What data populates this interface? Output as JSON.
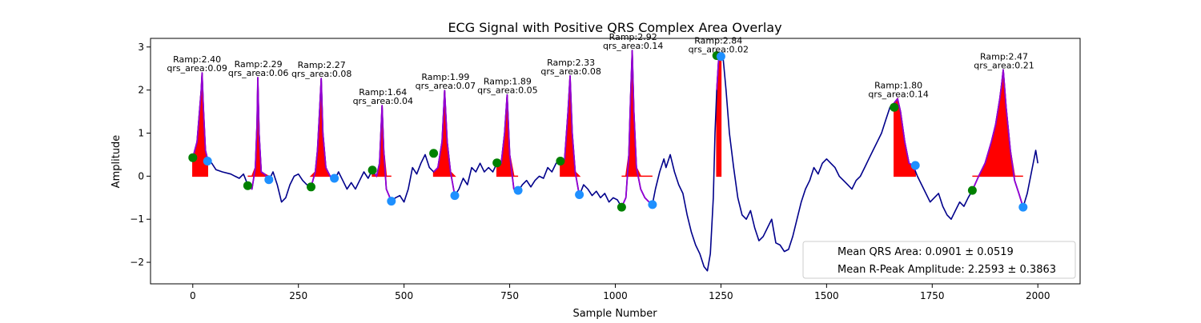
{
  "chart_data": {
    "type": "line",
    "title": "ECG Signal with Positive QRS Complex Area Overlay",
    "xlabel": "Sample Number",
    "ylabel": "Amplitude",
    "xlim": [
      -100,
      2100
    ],
    "ylim": [
      -2.5,
      3.2
    ],
    "xticks": [
      0,
      250,
      500,
      750,
      1000,
      1250,
      1500,
      1750,
      2000
    ],
    "yticks": [
      -2,
      -1,
      0,
      1,
      2,
      3
    ],
    "colors": {
      "signal": "#00008B",
      "qrs_segment": "#9400D3",
      "qrs_fill": "#FF0000",
      "onset_marker": "#008000",
      "offset_marker": "#1E90FF"
    },
    "legend": {
      "placement": "lower-right",
      "entries": [
        "Mean QRS Area: 0.0901 ± 0.0519",
        "Mean R-Peak Amplitude: 2.2593 ± 0.3863"
      ]
    },
    "signal": [
      [
        0,
        0.43
      ],
      [
        10,
        0.8
      ],
      [
        15,
        1.4
      ],
      [
        20,
        2.0
      ],
      [
        22,
        2.4
      ],
      [
        25,
        1.6
      ],
      [
        30,
        0.6
      ],
      [
        35,
        0.4
      ],
      [
        45,
        0.3
      ],
      [
        55,
        0.15
      ],
      [
        70,
        0.1
      ],
      [
        90,
        0.05
      ],
      [
        100,
        0.0
      ],
      [
        110,
        -0.05
      ],
      [
        120,
        0.05
      ],
      [
        130,
        -0.2
      ],
      [
        140,
        -0.3
      ],
      [
        148,
        0.2
      ],
      [
        152,
        1.2
      ],
      [
        154,
        2.29
      ],
      [
        157,
        1.0
      ],
      [
        162,
        0.1
      ],
      [
        170,
        0.05
      ],
      [
        180,
        -0.1
      ],
      [
        190,
        0.1
      ],
      [
        200,
        -0.2
      ],
      [
        210,
        -0.6
      ],
      [
        220,
        -0.5
      ],
      [
        230,
        -0.2
      ],
      [
        240,
        0.0
      ],
      [
        250,
        0.05
      ],
      [
        260,
        -0.1
      ],
      [
        270,
        -0.2
      ],
      [
        280,
        -0.25
      ],
      [
        290,
        0.1
      ],
      [
        295,
        0.6
      ],
      [
        300,
        1.5
      ],
      [
        304,
        2.27
      ],
      [
        308,
        1.0
      ],
      [
        315,
        0.2
      ],
      [
        325,
        0.0
      ],
      [
        335,
        -0.1
      ],
      [
        345,
        0.1
      ],
      [
        355,
        -0.1
      ],
      [
        365,
        -0.3
      ],
      [
        375,
        -0.15
      ],
      [
        385,
        -0.3
      ],
      [
        395,
        -0.1
      ],
      [
        405,
        0.1
      ],
      [
        415,
        -0.05
      ],
      [
        425,
        0.15
      ],
      [
        435,
        0.0
      ],
      [
        442,
        0.3
      ],
      [
        448,
        1.64
      ],
      [
        452,
        0.6
      ],
      [
        458,
        -0.3
      ],
      [
        470,
        -0.58
      ],
      [
        480,
        -0.5
      ],
      [
        490,
        -0.45
      ],
      [
        500,
        -0.6
      ],
      [
        510,
        -0.3
      ],
      [
        520,
        0.2
      ],
      [
        530,
        0.05
      ],
      [
        540,
        0.3
      ],
      [
        550,
        0.5
      ],
      [
        560,
        0.2
      ],
      [
        570,
        0.1
      ],
      [
        580,
        0.2
      ],
      [
        590,
        0.8
      ],
      [
        596,
        1.99
      ],
      [
        602,
        0.8
      ],
      [
        610,
        0.1
      ],
      [
        620,
        -0.45
      ],
      [
        630,
        -0.3
      ],
      [
        640,
        -0.05
      ],
      [
        650,
        -0.2
      ],
      [
        660,
        0.2
      ],
      [
        670,
        0.1
      ],
      [
        680,
        0.3
      ],
      [
        690,
        0.1
      ],
      [
        700,
        0.2
      ],
      [
        710,
        0.1
      ],
      [
        720,
        0.3
      ],
      [
        730,
        0.3
      ],
      [
        738,
        1.0
      ],
      [
        744,
        1.89
      ],
      [
        750,
        0.5
      ],
      [
        760,
        -0.3
      ],
      [
        770,
        -0.35
      ],
      [
        780,
        -0.2
      ],
      [
        790,
        -0.1
      ],
      [
        800,
        -0.25
      ],
      [
        810,
        -0.1
      ],
      [
        820,
        0.0
      ],
      [
        830,
        -0.05
      ],
      [
        840,
        0.2
      ],
      [
        850,
        0.1
      ],
      [
        860,
        0.3
      ],
      [
        870,
        0.35
      ],
      [
        880,
        0.4
      ],
      [
        888,
        1.5
      ],
      [
        893,
        2.33
      ],
      [
        898,
        1.0
      ],
      [
        905,
        0.1
      ],
      [
        915,
        -0.45
      ],
      [
        925,
        -0.2
      ],
      [
        935,
        -0.3
      ],
      [
        945,
        -0.45
      ],
      [
        955,
        -0.35
      ],
      [
        965,
        -0.5
      ],
      [
        975,
        -0.4
      ],
      [
        985,
        -0.6
      ],
      [
        995,
        -0.5
      ],
      [
        1005,
        -0.55
      ],
      [
        1015,
        -0.72
      ],
      [
        1025,
        -0.5
      ],
      [
        1032,
        0.5
      ],
      [
        1036,
        1.8
      ],
      [
        1040,
        2.92
      ],
      [
        1044,
        1.5
      ],
      [
        1050,
        0.2
      ],
      [
        1060,
        -0.3
      ],
      [
        1070,
        -0.5
      ],
      [
        1080,
        -0.6
      ],
      [
        1088,
        -0.65
      ],
      [
        1095,
        -0.3
      ],
      [
        1105,
        0.1
      ],
      [
        1115,
        0.4
      ],
      [
        1120,
        0.2
      ],
      [
        1130,
        0.5
      ],
      [
        1140,
        0.1
      ],
      [
        1150,
        -0.2
      ],
      [
        1160,
        -0.4
      ],
      [
        1170,
        -0.9
      ],
      [
        1180,
        -1.3
      ],
      [
        1190,
        -1.6
      ],
      [
        1200,
        -1.8
      ],
      [
        1210,
        -2.1
      ],
      [
        1218,
        -2.2
      ],
      [
        1225,
        -1.8
      ],
      [
        1232,
        -0.5
      ],
      [
        1236,
        1.0
      ],
      [
        1240,
        2.0
      ],
      [
        1245,
        2.8
      ],
      [
        1250,
        2.84
      ],
      [
        1255,
        2.75
      ],
      [
        1262,
        2.0
      ],
      [
        1270,
        1.0
      ],
      [
        1280,
        0.2
      ],
      [
        1290,
        -0.5
      ],
      [
        1300,
        -0.9
      ],
      [
        1310,
        -1.0
      ],
      [
        1320,
        -0.8
      ],
      [
        1330,
        -1.2
      ],
      [
        1340,
        -1.5
      ],
      [
        1350,
        -1.4
      ],
      [
        1360,
        -1.2
      ],
      [
        1370,
        -1.0
      ],
      [
        1380,
        -1.55
      ],
      [
        1390,
        -1.6
      ],
      [
        1400,
        -1.75
      ],
      [
        1410,
        -1.7
      ],
      [
        1420,
        -1.4
      ],
      [
        1430,
        -1.0
      ],
      [
        1440,
        -0.6
      ],
      [
        1450,
        -0.3
      ],
      [
        1460,
        -0.1
      ],
      [
        1470,
        0.2
      ],
      [
        1480,
        0.05
      ],
      [
        1490,
        0.3
      ],
      [
        1500,
        0.4
      ],
      [
        1510,
        0.3
      ],
      [
        1520,
        0.2
      ],
      [
        1530,
        0.0
      ],
      [
        1540,
        -0.1
      ],
      [
        1550,
        -0.2
      ],
      [
        1560,
        -0.3
      ],
      [
        1570,
        -0.1
      ],
      [
        1580,
        0.0
      ],
      [
        1590,
        0.2
      ],
      [
        1600,
        0.4
      ],
      [
        1610,
        0.6
      ],
      [
        1620,
        0.8
      ],
      [
        1630,
        1.0
      ],
      [
        1640,
        1.3
      ],
      [
        1650,
        1.6
      ],
      [
        1660,
        1.7
      ],
      [
        1668,
        1.8
      ],
      [
        1675,
        1.5
      ],
      [
        1685,
        0.8
      ],
      [
        1695,
        0.3
      ],
      [
        1705,
        0.25
      ],
      [
        1715,
        0.0
      ],
      [
        1725,
        -0.2
      ],
      [
        1735,
        -0.4
      ],
      [
        1745,
        -0.6
      ],
      [
        1755,
        -0.5
      ],
      [
        1765,
        -0.4
      ],
      [
        1775,
        -0.7
      ],
      [
        1785,
        -0.9
      ],
      [
        1795,
        -1.0
      ],
      [
        1805,
        -0.8
      ],
      [
        1815,
        -0.6
      ],
      [
        1825,
        -0.7
      ],
      [
        1835,
        -0.5
      ],
      [
        1845,
        -0.33
      ],
      [
        1860,
        0.0
      ],
      [
        1875,
        0.3
      ],
      [
        1890,
        0.8
      ],
      [
        1900,
        1.2
      ],
      [
        1910,
        1.8
      ],
      [
        1915,
        2.2
      ],
      [
        1918,
        2.47
      ],
      [
        1925,
        1.6
      ],
      [
        1935,
        0.6
      ],
      [
        1945,
        -0.1
      ],
      [
        1955,
        -0.4
      ],
      [
        1965,
        -0.72
      ],
      [
        1975,
        -0.4
      ],
      [
        1985,
        0.1
      ],
      [
        1995,
        0.6
      ],
      [
        2000,
        0.3
      ]
    ],
    "qrs_segments": [
      {
        "onset": 0,
        "offset": 35
      },
      {
        "onset": 130,
        "offset": 180
      },
      {
        "onset": 280,
        "offset": 335
      },
      {
        "onset": 425,
        "offset": 470
      },
      {
        "onset": 570,
        "offset": 620
      },
      {
        "onset": 720,
        "offset": 770
      },
      {
        "onset": 870,
        "offset": 915
      },
      {
        "onset": 1015,
        "offset": 1088
      },
      {
        "onset": 1240,
        "offset": 1250
      },
      {
        "onset": 1660,
        "offset": 1710
      },
      {
        "onset": 1845,
        "offset": 1965
      }
    ],
    "onset_markers": [
      [
        0,
        0.43
      ],
      [
        130,
        -0.22
      ],
      [
        280,
        -0.25
      ],
      [
        425,
        0.14
      ],
      [
        570,
        0.53
      ],
      [
        720,
        0.31
      ],
      [
        870,
        0.35
      ],
      [
        1015,
        -0.72
      ],
      [
        1240,
        2.8
      ],
      [
        1660,
        1.6
      ],
      [
        1845,
        -0.33
      ]
    ],
    "offset_markers": [
      [
        35,
        0.35
      ],
      [
        180,
        -0.08
      ],
      [
        335,
        -0.05
      ],
      [
        470,
        -0.58
      ],
      [
        620,
        -0.45
      ],
      [
        770,
        -0.33
      ],
      [
        915,
        -0.43
      ],
      [
        1088,
        -0.66
      ],
      [
        1250,
        2.78
      ],
      [
        1710,
        0.25
      ],
      [
        1965,
        -0.72
      ]
    ],
    "annotations": [
      {
        "x": 10,
        "y": 2.4,
        "line1": "Ramp:2.40",
        "line2": "qrs_area:0.09"
      },
      {
        "x": 155,
        "y": 2.29,
        "line1": "Ramp:2.29",
        "line2": "qrs_area:0.06"
      },
      {
        "x": 305,
        "y": 2.27,
        "line1": "Ramp:2.27",
        "line2": "qrs_area:0.08"
      },
      {
        "x": 450,
        "y": 1.64,
        "line1": "Ramp:1.64",
        "line2": "qrs_area:0.04"
      },
      {
        "x": 598,
        "y": 1.99,
        "line1": "Ramp:1.99",
        "line2": "qrs_area:0.07"
      },
      {
        "x": 745,
        "y": 1.89,
        "line1": "Ramp:1.89",
        "line2": "qrs_area:0.05"
      },
      {
        "x": 895,
        "y": 2.33,
        "line1": "Ramp:2.33",
        "line2": "qrs_area:0.08"
      },
      {
        "x": 1042,
        "y": 2.92,
        "line1": "Ramp:2.92",
        "line2": "qrs_area:0.14"
      },
      {
        "x": 1244,
        "y": 2.84,
        "line1": "Ramp:2.84",
        "line2": "qrs_area:0.02"
      },
      {
        "x": 1670,
        "y": 1.8,
        "line1": "Ramp:1.80",
        "line2": "qrs_area:0.14"
      },
      {
        "x": 1920,
        "y": 2.47,
        "line1": "Ramp:2.47",
        "line2": "qrs_area:0.21"
      }
    ]
  }
}
